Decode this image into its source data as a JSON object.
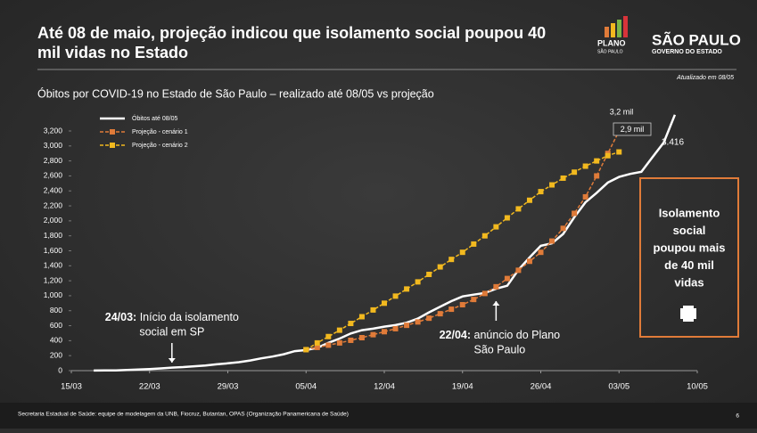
{
  "header": {
    "title_lines": [
      "Até 08 de maio, projeção indicou que isolamento social poupou 40",
      "mil vidas no Estado"
    ],
    "logo_plano": [
      "PLANO",
      "SÃO PAULO"
    ],
    "logo_gov": [
      "SÃO PAULO",
      "GOVERNO DO ESTADO"
    ],
    "updated": "Atualizado em 08/05"
  },
  "chart_data": {
    "type": "line",
    "title": "Óbitos por COVID-19 no Estado de São Paulo – realizado até 08/05 vs projeção",
    "x": [
      "16/03",
      "17/03",
      "18/03",
      "19/03",
      "20/03",
      "21/03",
      "22/03",
      "23/03",
      "24/03",
      "25/03",
      "26/03",
      "27/03",
      "28/03",
      "29/03",
      "30/03",
      "31/03",
      "01/04",
      "02/04",
      "03/04",
      "04/04",
      "05/04",
      "06/04",
      "07/04",
      "08/04",
      "09/04",
      "10/04",
      "11/04",
      "12/04",
      "13/04",
      "14/04",
      "15/04",
      "16/04",
      "17/04",
      "18/04",
      "19/04",
      "20/04",
      "21/04",
      "22/04",
      "23/04",
      "24/04",
      "25/04",
      "26/04",
      "27/04",
      "28/04",
      "29/04",
      "30/04",
      "01/05",
      "02/05",
      "03/05",
      "04/05",
      "05/05",
      "06/05",
      "07/05",
      "08/05"
    ],
    "series": [
      {
        "name": "Óbitos até 08/05",
        "color": "#ffffff",
        "style": "solid",
        "values": [
          null,
          1,
          2,
          4,
          9,
          15,
          22,
          30,
          40,
          48,
          58,
          68,
          84,
          98,
          113,
          136,
          164,
          188,
          219,
          260,
          275,
          304,
          371,
          428,
          496,
          540,
          560,
          588,
          608,
          640,
          695,
          778,
          853,
          928,
          991,
          1015,
          1037,
          1093,
          1134,
          1345,
          1512,
          1667,
          1700,
          1825,
          2049,
          2247,
          2375,
          2511,
          2586,
          2627,
          2654,
          2851,
          3045,
          3416
        ]
      },
      {
        "name": "Projeção - cenário 1",
        "color": "#e07b39",
        "style": "dashed",
        "values": [
          null,
          null,
          null,
          null,
          null,
          null,
          null,
          null,
          null,
          null,
          null,
          null,
          null,
          null,
          null,
          null,
          null,
          null,
          null,
          null,
          280,
          310,
          340,
          370,
          405,
          440,
          480,
          520,
          560,
          605,
          650,
          700,
          760,
          820,
          880,
          950,
          1030,
          1120,
          1230,
          1340,
          1460,
          1580,
          1730,
          1900,
          2100,
          2320,
          2600,
          2900,
          3200,
          null,
          null,
          null,
          null,
          null
        ]
      },
      {
        "name": "Projeção - cenário 2",
        "color": "#f2b91f",
        "style": "dashed",
        "values": [
          null,
          null,
          null,
          null,
          null,
          null,
          null,
          null,
          null,
          null,
          null,
          null,
          null,
          null,
          null,
          null,
          null,
          null,
          null,
          null,
          280,
          370,
          455,
          540,
          630,
          720,
          810,
          900,
          995,
          1090,
          1185,
          1285,
          1385,
          1485,
          1580,
          1690,
          1800,
          1920,
          2040,
          2160,
          2275,
          2390,
          2480,
          2570,
          2650,
          2730,
          2800,
          2870,
          2920,
          null,
          null,
          null,
          null,
          null
        ]
      }
    ],
    "xlim": [
      "15/03",
      "10/05"
    ],
    "xticks": [
      "15/03",
      "22/03",
      "29/03",
      "05/04",
      "12/04",
      "19/04",
      "26/04",
      "03/05",
      "10/05"
    ],
    "ylim": [
      0,
      3200
    ],
    "yticks": [
      0,
      200,
      400,
      600,
      800,
      {
        "value": 1000,
        "label": "1,000"
      },
      {
        "value": 1200,
        "label": "1,200"
      },
      {
        "value": 1400,
        "label": "1,400"
      },
      {
        "value": 1600,
        "label": "1,600"
      },
      {
        "value": 1800,
        "label": "1,800"
      },
      {
        "value": 2000,
        "label": "2,000"
      },
      {
        "value": 2200,
        "label": "2,200"
      },
      {
        "value": 2400,
        "label": "2,400"
      },
      {
        "value": 2600,
        "label": "2,600"
      },
      {
        "value": 2800,
        "label": "2,800"
      },
      {
        "value": 3000,
        "label": "3,000"
      },
      {
        "value": 3200,
        "label": "3,200"
      }
    ],
    "grid": false,
    "legend": "upper left",
    "annotations": [
      {
        "bold": "24/03:",
        "lines": [
          "Início da isolamento",
          "social em SP"
        ],
        "x": "24/03"
      },
      {
        "bold": "22/04:",
        "lines": [
          "anúncio do Plano",
          "São Paulo"
        ],
        "x": "22/04"
      }
    ],
    "point_labels": [
      "3,2 mil",
      "2,9 mil",
      "3.416"
    ]
  },
  "side_box": {
    "lines": [
      "Isolamento",
      "social",
      "poupou mais",
      "de 40 mil",
      "vidas"
    ]
  },
  "footer": {
    "source": "Secretaria Estadual de Saúde: equipe de modelagem da UNB, Fiocruz, Butantan, OPAS (Organização Panamericana de Saúde)",
    "page": "6"
  }
}
